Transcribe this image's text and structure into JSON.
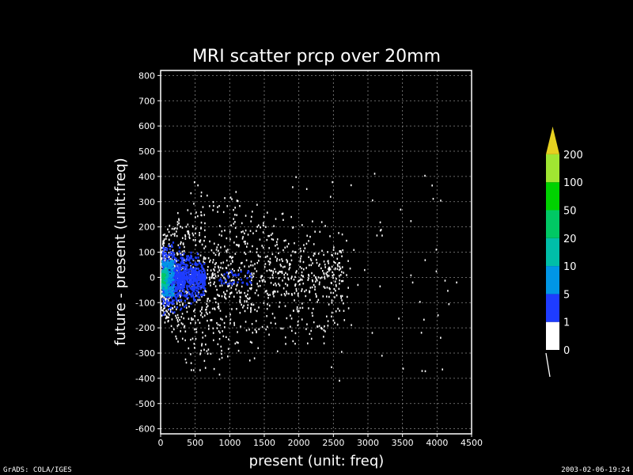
{
  "chart_data": {
    "type": "heatmap",
    "title": "MRI scatter prcp over 20mm",
    "xlabel": "present (unit: freq)",
    "ylabel": "future - present (unit:freq)",
    "xlim": [
      0,
      4500
    ],
    "ylim": [
      -620,
      820
    ],
    "x_ticks": [
      0,
      500,
      1000,
      1500,
      2000,
      2500,
      3000,
      3500,
      4000,
      4500
    ],
    "y_ticks": [
      800,
      700,
      600,
      500,
      400,
      300,
      200,
      100,
      0,
      -100,
      -200,
      -300,
      -400,
      -500,
      -600
    ],
    "grid": true,
    "colorbar": {
      "levels": [
        "0",
        "1",
        "5",
        "10",
        "20",
        "50",
        "100",
        "200"
      ],
      "colors": [
        "#ffffff",
        "#1e3cff",
        "#0096e6",
        "#00bea8",
        "#00c864",
        "#00d200",
        "#a0e632",
        "#e6d020"
      ],
      "extend": "max"
    }
  },
  "footer": {
    "left": "GrADS: COLA/IGES",
    "right": "2003-02-06-19:24"
  }
}
